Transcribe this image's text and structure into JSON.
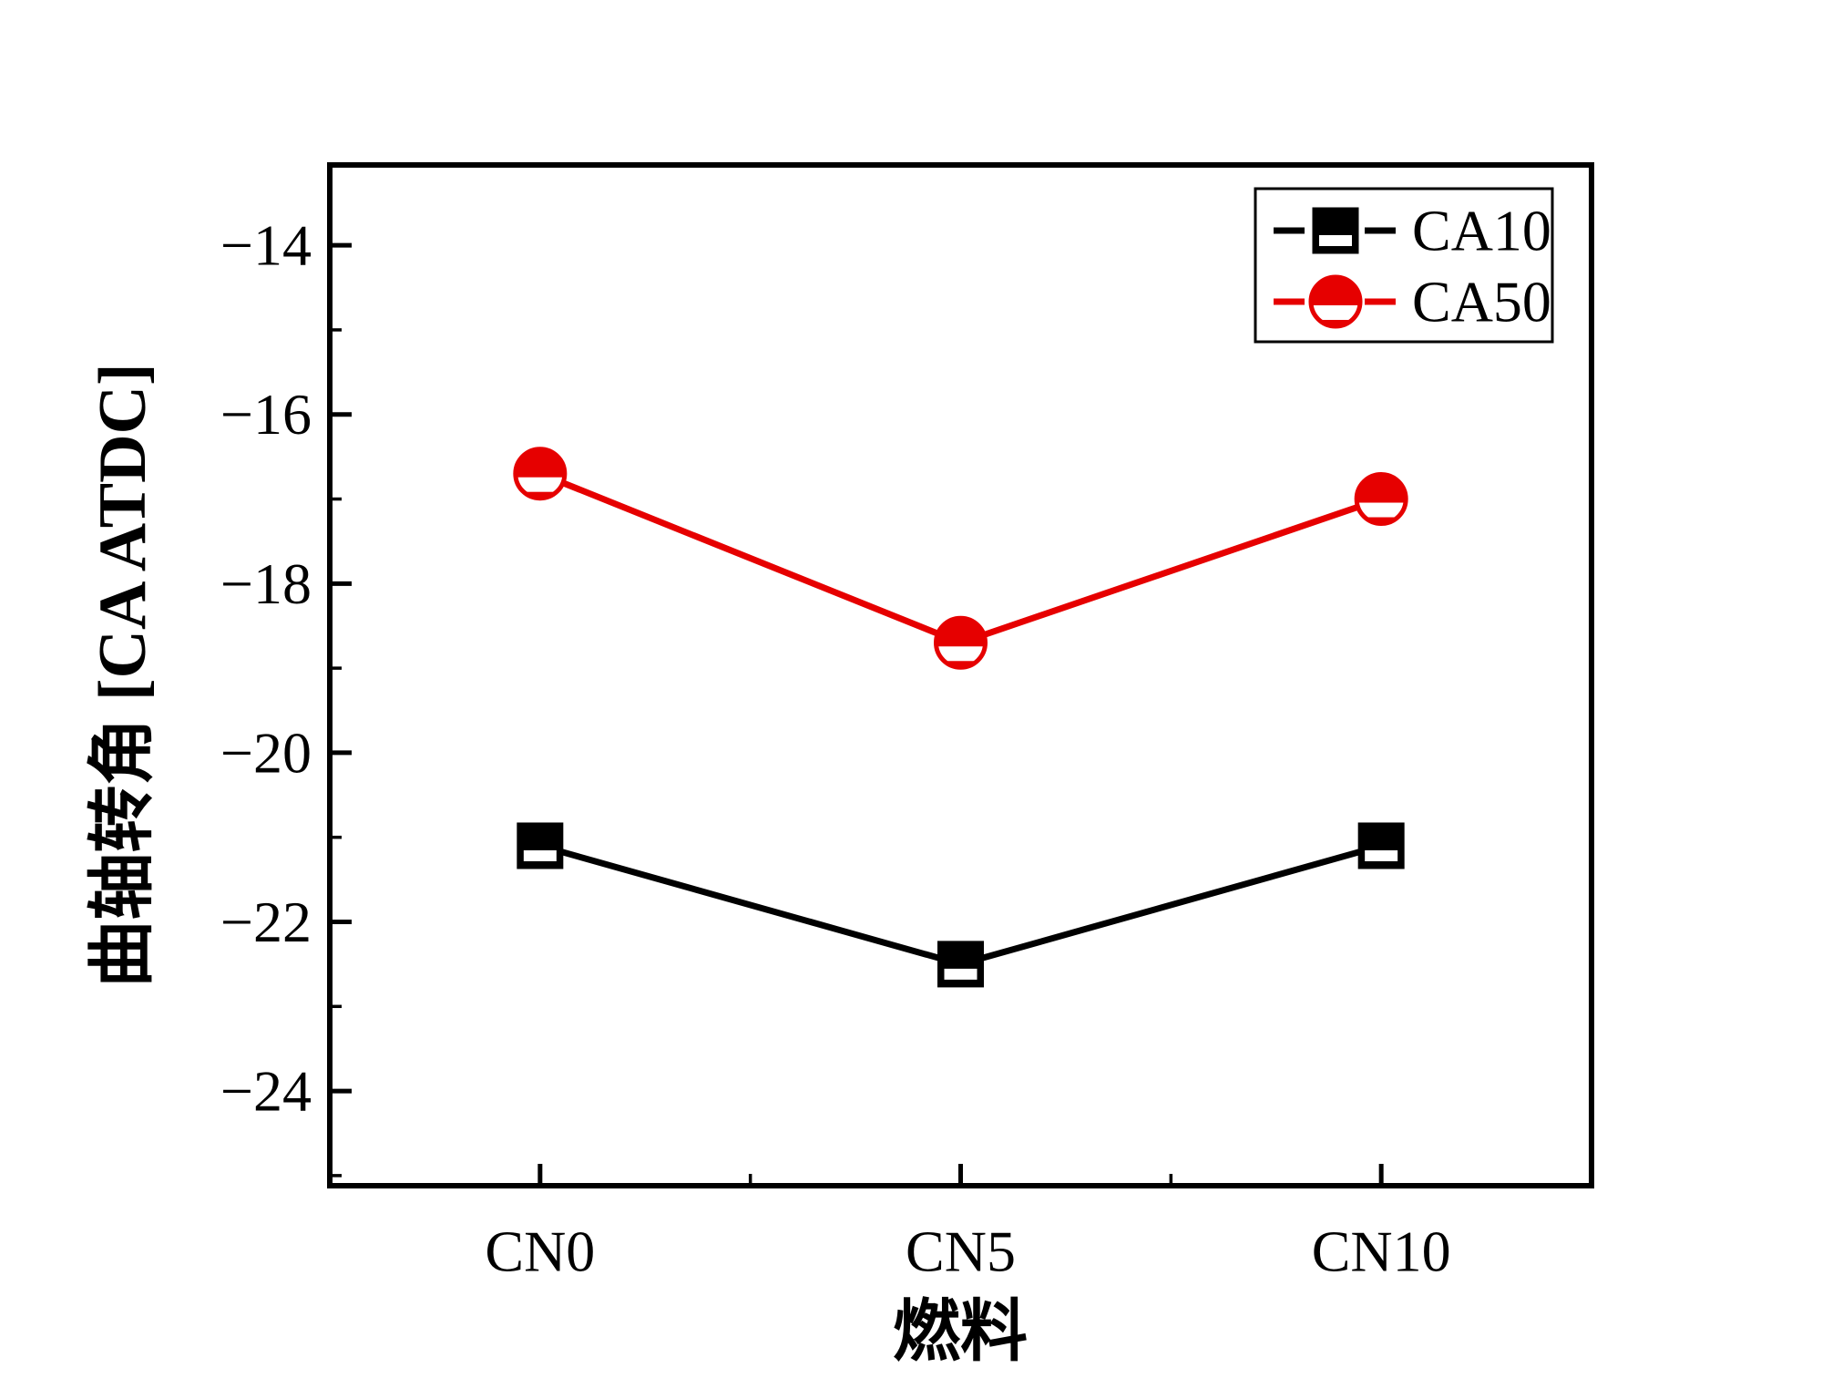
{
  "chart_data": {
    "type": "line",
    "title": "",
    "categories": [
      "CN0",
      "CN5",
      "CN10"
    ],
    "series": [
      {
        "name": "CA10",
        "color": "#000000",
        "marker": "square",
        "values": [
          -21.1,
          -22.5,
          -21.1
        ]
      },
      {
        "name": "CA50",
        "color": "#e60000",
        "marker": "circle",
        "values": [
          -16.7,
          -18.7,
          -17.0
        ]
      }
    ],
    "xlabel": "燃料",
    "ylabel": "曲轴转角 [CA ATDC]",
    "ylim": [
      -25.12,
      -13.05
    ],
    "yticks": [
      -14,
      -16,
      -18,
      -20,
      -22,
      -24
    ],
    "yminor": [
      -15,
      -17,
      -19,
      -21,
      -23,
      -25
    ],
    "grid": "off",
    "legend_position": "top-right",
    "legend_labels": [
      "CA10",
      "CA50"
    ]
  }
}
